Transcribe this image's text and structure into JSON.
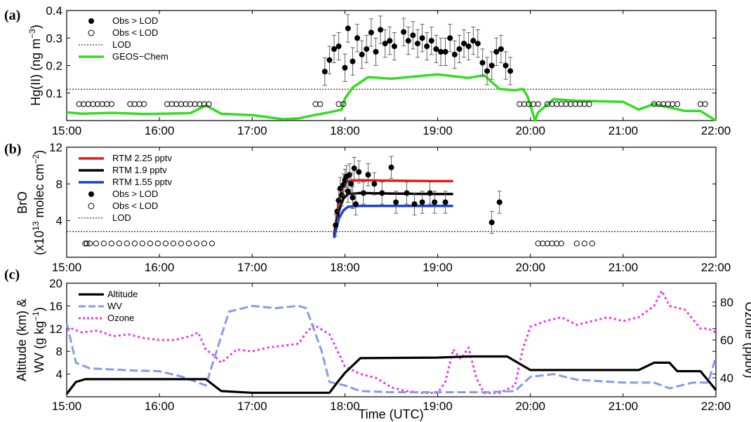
{
  "figure": {
    "x_tick_labels": [
      "15:00",
      "16:00",
      "17:00",
      "18:00",
      "19:00",
      "20:00",
      "21:00",
      "22:00"
    ],
    "x_axis_label": "Time (UTC)"
  },
  "chart_data": [
    {
      "panel_label": "(a)",
      "type": "scatter",
      "ylabel": [
        "Hg(II) (ng m",
        "−3",
        ")"
      ],
      "yticks": [
        "0.1",
        "0.2",
        "0.3",
        "0.4"
      ],
      "ylim": [
        0,
        0.4
      ],
      "xlim": [
        "15:00",
        "22:00"
      ],
      "grid": false,
      "legend_position": "top-left",
      "legend": [
        "Obs > LOD",
        "Obs < LOD",
        "LOD",
        "GEOS−Chem"
      ],
      "lod": 0.114,
      "colors": {
        "geos": "#33dd22",
        "obs": "#000000"
      },
      "obs_above_lod": [
        {
          "t": "17:47",
          "y": 0.178,
          "err": 0.05
        },
        {
          "t": "17:50",
          "y": 0.22,
          "err": 0.05
        },
        {
          "t": "17:53",
          "y": 0.26,
          "err": 0.05
        },
        {
          "t": "17:56",
          "y": 0.27,
          "err": 0.05
        },
        {
          "t": "18:00",
          "y": 0.192,
          "err": 0.05
        },
        {
          "t": "18:02",
          "y": 0.335,
          "err": 0.05
        },
        {
          "t": "18:05",
          "y": 0.215,
          "err": 0.05
        },
        {
          "t": "18:08",
          "y": 0.3,
          "err": 0.05
        },
        {
          "t": "18:11",
          "y": 0.24,
          "err": 0.05
        },
        {
          "t": "18:14",
          "y": 0.26,
          "err": 0.05
        },
        {
          "t": "18:17",
          "y": 0.32,
          "err": 0.05
        },
        {
          "t": "18:20",
          "y": 0.25,
          "err": 0.05
        },
        {
          "t": "18:23",
          "y": 0.33,
          "err": 0.05
        },
        {
          "t": "18:26",
          "y": 0.28,
          "err": 0.05
        },
        {
          "t": "18:29",
          "y": 0.29,
          "err": 0.05
        },
        {
          "t": "18:32",
          "y": 0.27,
          "err": 0.05
        },
        {
          "t": "18:38",
          "y": 0.322,
          "err": 0.05
        },
        {
          "t": "18:41",
          "y": 0.29,
          "err": 0.05
        },
        {
          "t": "18:44",
          "y": 0.31,
          "err": 0.05
        },
        {
          "t": "18:47",
          "y": 0.28,
          "err": 0.05
        },
        {
          "t": "18:50",
          "y": 0.3,
          "err": 0.05
        },
        {
          "t": "18:53",
          "y": 0.27,
          "err": 0.05
        },
        {
          "t": "18:56",
          "y": 0.29,
          "err": 0.05
        },
        {
          "t": "18:59",
          "y": 0.26,
          "err": 0.05
        },
        {
          "t": "19:02",
          "y": 0.25,
          "err": 0.05
        },
        {
          "t": "19:05",
          "y": 0.25,
          "err": 0.05
        },
        {
          "t": "19:08",
          "y": 0.3,
          "err": 0.05
        },
        {
          "t": "19:11",
          "y": 0.24,
          "err": 0.05
        },
        {
          "t": "19:14",
          "y": 0.26,
          "err": 0.05
        },
        {
          "t": "19:17",
          "y": 0.28,
          "err": 0.05
        },
        {
          "t": "19:20",
          "y": 0.27,
          "err": 0.05
        },
        {
          "t": "19:23",
          "y": 0.29,
          "err": 0.05
        },
        {
          "t": "19:26",
          "y": 0.28,
          "err": 0.05
        },
        {
          "t": "19:29",
          "y": 0.21,
          "err": 0.05
        },
        {
          "t": "19:32",
          "y": 0.18,
          "err": 0.05
        },
        {
          "t": "19:35",
          "y": 0.2,
          "err": 0.05
        },
        {
          "t": "19:38",
          "y": 0.25,
          "err": 0.05
        },
        {
          "t": "19:41",
          "y": 0.26,
          "err": 0.05
        },
        {
          "t": "19:44",
          "y": 0.2,
          "err": 0.05
        },
        {
          "t": "19:47",
          "y": 0.18,
          "err": 0.05
        }
      ],
      "obs_below_lod": {
        "y": 0.06,
        "t": [
          "15:08",
          "15:11",
          "15:14",
          "15:17",
          "15:20",
          "15:23",
          "15:26",
          "15:29",
          "15:41",
          "15:44",
          "15:47",
          "15:50",
          "16:05",
          "16:08",
          "16:11",
          "16:14",
          "16:17",
          "16:20",
          "16:23",
          "16:26",
          "16:29",
          "16:32",
          "17:41",
          "17:44",
          "17:56",
          "17:59",
          "19:53",
          "19:56",
          "19:59",
          "20:02",
          "20:05",
          "20:11",
          "20:14",
          "20:17",
          "20:20",
          "20:23",
          "20:26",
          "20:29",
          "20:32",
          "20:35",
          "20:38",
          "21:20",
          "21:23",
          "21:26",
          "21:29",
          "21:32",
          "21:35",
          "21:50",
          "21:53"
        ]
      },
      "geos_chem": {
        "t": [
          "15:00",
          "15:10",
          "15:30",
          "15:50",
          "16:00",
          "16:20",
          "16:30",
          "16:40",
          "17:00",
          "17:20",
          "17:30",
          "17:40",
          "17:50",
          "17:58",
          "18:00",
          "18:05",
          "18:15",
          "18:30",
          "19:00",
          "19:20",
          "19:30",
          "19:40",
          "19:50",
          "19:55",
          "19:58",
          "20:03",
          "20:05",
          "20:15",
          "20:30",
          "21:00",
          "21:10",
          "21:20",
          "21:40",
          "21:50",
          "22:00"
        ],
        "y": [
          0.03,
          0.025,
          0.028,
          0.024,
          0.025,
          0.027,
          0.055,
          0.025,
          0.02,
          0.005,
          0.008,
          0.02,
          0.03,
          0.04,
          0.08,
          0.12,
          0.158,
          0.152,
          0.168,
          0.155,
          0.165,
          0.115,
          0.11,
          0.115,
          0.09,
          0.0,
          0.03,
          0.078,
          0.072,
          0.068,
          0.04,
          0.06,
          0.035,
          0.035,
          0.0
        ]
      }
    },
    {
      "panel_label": "(b)",
      "type": "scatter",
      "ylabel": [
        "BrO",
        "(x10",
        "13",
        " molec cm",
        "−2",
        ")"
      ],
      "yticks": [
        "4",
        "8",
        "12"
      ],
      "ylim": [
        0,
        12
      ],
      "xlim": [
        "15:00",
        "22:00"
      ],
      "grid": false,
      "legend_position": "top-left",
      "legend": [
        "RTM 2.25 pptv",
        "RTM 1.9 pptv",
        "RTM 1.55 pptv",
        "Obs > LOD",
        "Obs < LOD",
        "LOD"
      ],
      "lod": 2.8,
      "colors": {
        "rtm_225": "#e81919",
        "rtm_19": "#000000",
        "rtm_155": "#1a3fe0"
      },
      "rtm": [
        {
          "name": "RTM 2.25 pptv",
          "t": [
            "17:53",
            "17:56",
            "17:59",
            "18:02",
            "18:10",
            "18:30",
            "19:00",
            "19:10"
          ],
          "y": [
            2.5,
            6.0,
            7.9,
            8.3,
            8.4,
            8.35,
            8.3,
            8.3
          ]
        },
        {
          "name": "RTM 1.9 pptv",
          "t": [
            "17:53",
            "17:56",
            "17:59",
            "18:02",
            "18:10",
            "18:30",
            "19:00",
            "19:10"
          ],
          "y": [
            2.3,
            5.0,
            6.4,
            6.9,
            7.0,
            6.95,
            6.9,
            6.9
          ]
        },
        {
          "name": "RTM 1.55 pptv",
          "t": [
            "17:53",
            "17:56",
            "17:59",
            "18:02",
            "18:10",
            "18:30",
            "19:00",
            "19:10"
          ],
          "y": [
            2.1,
            4.2,
            5.1,
            5.5,
            5.6,
            5.6,
            5.6,
            5.6
          ]
        }
      ],
      "obs_above_lod": [
        {
          "t": "17:54",
          "y": 3.5,
          "err": 1.2
        },
        {
          "t": "17:55",
          "y": 5.0,
          "err": 1.2
        },
        {
          "t": "17:56",
          "y": 6.2,
          "err": 1.2
        },
        {
          "t": "17:57",
          "y": 7.5,
          "err": 1.2
        },
        {
          "t": "17:58",
          "y": 6.8,
          "err": 1.2
        },
        {
          "t": "17:59",
          "y": 7.9,
          "err": 1.2
        },
        {
          "t": "18:00",
          "y": 8.4,
          "err": 1.2
        },
        {
          "t": "18:01",
          "y": 8.8,
          "err": 1.2
        },
        {
          "t": "18:02",
          "y": 7.2,
          "err": 1.2
        },
        {
          "t": "18:03",
          "y": 9.0,
          "err": 1.2
        },
        {
          "t": "18:04",
          "y": 8.0,
          "err": 1.2
        },
        {
          "t": "18:05",
          "y": 6.5,
          "err": 1.2
        },
        {
          "t": "18:06",
          "y": 9.7,
          "err": 1.2
        },
        {
          "t": "18:07",
          "y": 5.8,
          "err": 1.2
        },
        {
          "t": "18:09",
          "y": 9.3,
          "err": 1.2
        },
        {
          "t": "18:12",
          "y": 7.0,
          "err": 1.2
        },
        {
          "t": "18:15",
          "y": 9.0,
          "err": 1.2
        },
        {
          "t": "18:19",
          "y": 8.0,
          "err": 1.2
        },
        {
          "t": "18:24",
          "y": 7.0,
          "err": 1.2
        },
        {
          "t": "18:30",
          "y": 9.8,
          "err": 1.2
        },
        {
          "t": "18:33",
          "y": 6.0,
          "err": 1.2
        },
        {
          "t": "18:40",
          "y": 7.0,
          "err": 1.2
        },
        {
          "t": "18:45",
          "y": 5.8,
          "err": 1.2
        },
        {
          "t": "18:50",
          "y": 6.0,
          "err": 1.2
        },
        {
          "t": "18:55",
          "y": 7.0,
          "err": 1.2
        },
        {
          "t": "18:58",
          "y": 6.0,
          "err": 1.2
        },
        {
          "t": "19:05",
          "y": 6.0,
          "err": 1.2
        },
        {
          "t": "19:35",
          "y": 3.8,
          "err": 1.2
        },
        {
          "t": "19:40",
          "y": 6.0,
          "err": 1.2
        }
      ],
      "obs_below_lod": {
        "y": 1.5,
        "t": [
          "15:12",
          "15:13",
          "15:15",
          "15:19",
          "15:24",
          "15:29",
          "15:34",
          "15:39",
          "15:44",
          "15:49",
          "15:54",
          "15:59",
          "16:04",
          "16:09",
          "16:14",
          "16:19",
          "16:24",
          "16:29",
          "16:34",
          "20:05",
          "20:08",
          "20:11",
          "20:14",
          "20:17",
          "20:20",
          "20:30",
          "20:35",
          "20:40"
        ]
      }
    },
    {
      "panel_label": "(c)",
      "type": "line",
      "ylabel_left": [
        "Altitude (km) &",
        "WV (g kg",
        "−1",
        ")"
      ],
      "ylabel_right": "Ozone (ppbv)",
      "yticks_left": [
        "4",
        "8",
        "12",
        "16",
        "20"
      ],
      "yticks_right": [
        "40",
        "60",
        "80"
      ],
      "ylim_left": [
        0,
        20
      ],
      "ylim_right": [
        30,
        90
      ],
      "xlim": [
        "15:00",
        "22:00"
      ],
      "grid": false,
      "legend_position": "top-left",
      "legend": [
        "Altitude",
        "WV",
        "Ozone"
      ],
      "colors": {
        "altitude": "#000000",
        "wv": "#8899ee",
        "ozone": "#ee33ee"
      },
      "altitude": {
        "t": [
          "15:00",
          "15:06",
          "15:12",
          "15:20",
          "16:00",
          "16:20",
          "16:30",
          "16:40",
          "17:00",
          "17:20",
          "17:50",
          "17:55",
          "18:00",
          "18:10",
          "19:00",
          "19:20",
          "19:45",
          "19:55",
          "20:00",
          "20:30",
          "21:00",
          "21:10",
          "21:20",
          "21:30",
          "21:35",
          "21:50",
          "22:00"
        ],
        "y": [
          0.5,
          2.6,
          3.1,
          3.1,
          3.1,
          3.1,
          3.1,
          1.0,
          0.7,
          0.7,
          0.7,
          2.5,
          4.2,
          6.8,
          6.9,
          7.1,
          7.1,
          5.5,
          4.7,
          4.7,
          4.7,
          4.7,
          6.0,
          6.0,
          4.5,
          4.5,
          1.2
        ]
      },
      "wv": {
        "t": [
          "15:00",
          "15:06",
          "15:15",
          "15:30",
          "15:45",
          "16:00",
          "16:15",
          "16:25",
          "16:30",
          "16:45",
          "17:00",
          "17:15",
          "17:30",
          "17:35",
          "17:45",
          "17:50",
          "18:00",
          "18:10",
          "18:30",
          "19:00",
          "19:30",
          "19:50",
          "20:00",
          "20:15",
          "20:30",
          "21:00",
          "21:20",
          "21:30",
          "21:45",
          "21:55",
          "22:00"
        ],
        "y": [
          13.0,
          6.0,
          5.0,
          4.8,
          4.6,
          4.5,
          3.5,
          2.5,
          2.0,
          15.0,
          16.0,
          15.6,
          16.0,
          15.6,
          8.0,
          2.6,
          2.0,
          1.0,
          0.8,
          0.8,
          0.8,
          1.0,
          3.5,
          4.0,
          3.0,
          2.5,
          2.5,
          1.5,
          2.5,
          2.5,
          7.0
        ]
      },
      "ozone": {
        "t": [
          "15:00",
          "15:10",
          "15:20",
          "15:30",
          "15:40",
          "15:50",
          "16:00",
          "16:10",
          "16:20",
          "16:25",
          "16:30",
          "16:35",
          "16:40",
          "16:50",
          "17:00",
          "17:10",
          "17:20",
          "17:30",
          "17:35",
          "17:40",
          "17:50",
          "18:00",
          "18:10",
          "18:20",
          "18:30",
          "18:40",
          "18:50",
          "19:00",
          "19:05",
          "19:10",
          "19:15",
          "19:20",
          "19:25",
          "19:30",
          "19:40",
          "19:50",
          "19:55",
          "20:00",
          "20:10",
          "20:20",
          "20:30",
          "20:40",
          "20:50",
          "21:00",
          "21:10",
          "21:20",
          "21:25",
          "21:30",
          "21:40",
          "21:50",
          "21:55",
          "22:00"
        ],
        "y": [
          67,
          64,
          65,
          62,
          63,
          61,
          60,
          60,
          62,
          64,
          55,
          52,
          48,
          55,
          54,
          56,
          57,
          58,
          64,
          68,
          63,
          46,
          42,
          40,
          35,
          33,
          32,
          32,
          38,
          55,
          50,
          56,
          40,
          32,
          32,
          36,
          55,
          67,
          70,
          72,
          68,
          70,
          72,
          70,
          72,
          78,
          86,
          78,
          76,
          66,
          66,
          64
        ]
      }
    }
  ]
}
